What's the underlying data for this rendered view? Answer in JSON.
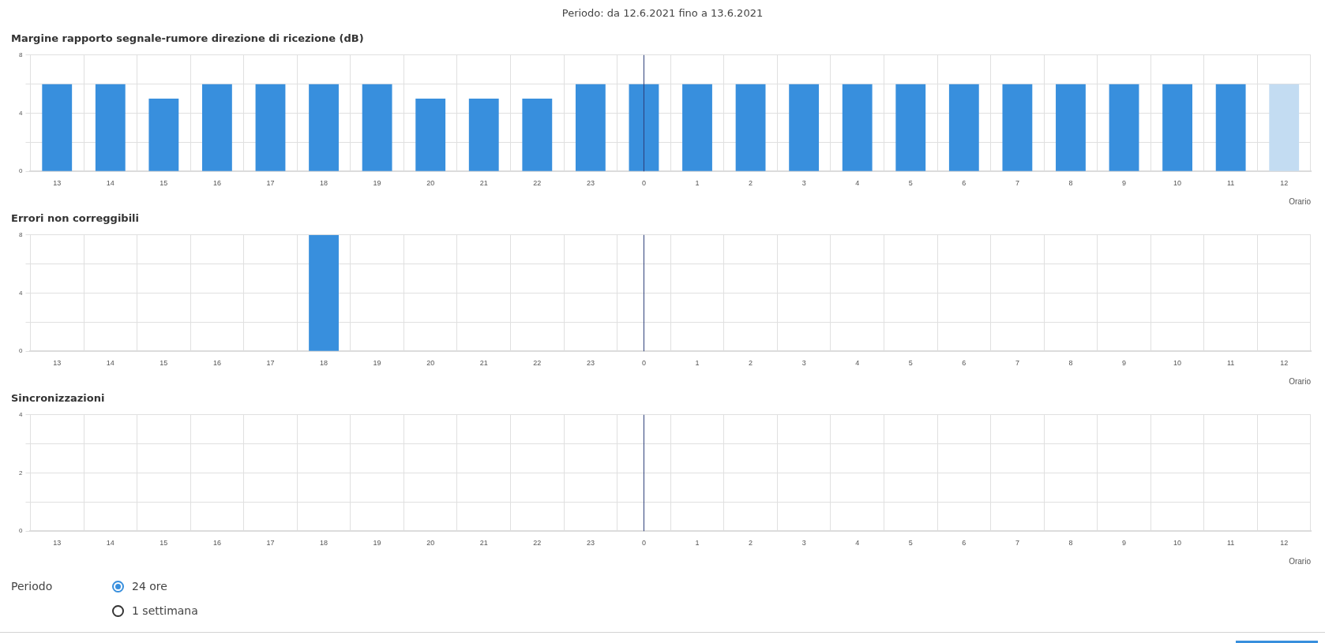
{
  "chart_data": [
    {
      "type": "other",
      "title": "Periodo: da 12.6.2021 fino a 13.6.2021"
    },
    {
      "type": "bar",
      "title": "Margine rapporto segnale-rumore direzione di ricezione (dB)",
      "xlabel": "Orario",
      "categories": [
        "13",
        "14",
        "15",
        "16",
        "17",
        "18",
        "19",
        "20",
        "21",
        "22",
        "23",
        "0",
        "1",
        "2",
        "3",
        "4",
        "5",
        "6",
        "7",
        "8",
        "9",
        "10",
        "11",
        "12"
      ],
      "values": [
        6,
        6,
        5,
        6,
        6,
        6,
        6,
        5,
        5,
        5,
        6,
        6,
        6,
        6,
        6,
        6,
        6,
        6,
        6,
        6,
        6,
        6,
        6,
        6
      ],
      "colors": [
        "#388fdd",
        "#388fdd",
        "#388fdd",
        "#388fdd",
        "#388fdd",
        "#388fdd",
        "#388fdd",
        "#388fdd",
        "#388fdd",
        "#388fdd",
        "#388fdd",
        "#388fdd",
        "#388fdd",
        "#388fdd",
        "#388fdd",
        "#388fdd",
        "#388fdd",
        "#388fdd",
        "#388fdd",
        "#388fdd",
        "#388fdd",
        "#388fdd",
        "#388fdd",
        "#c3dcf2"
      ],
      "ylim": [
        0,
        8
      ],
      "yticks": [
        0,
        {
          "value": 2,
          "label": null
        },
        4,
        {
          "value": 6,
          "label": null
        },
        8
      ],
      "grid": true,
      "ref_lines": [
        {
          "axis": "x",
          "value": "0",
          "color": "#2c3e7a"
        }
      ]
    },
    {
      "type": "bar",
      "title": "Errori non correggibili",
      "xlabel": "Orario",
      "categories": [
        "13",
        "14",
        "15",
        "16",
        "17",
        "18",
        "19",
        "20",
        "21",
        "22",
        "23",
        "0",
        "1",
        "2",
        "3",
        "4",
        "5",
        "6",
        "7",
        "8",
        "9",
        "10",
        "11",
        "12"
      ],
      "values": [
        0,
        0,
        0,
        0,
        0,
        8,
        0,
        0,
        0,
        0,
        0,
        0,
        0,
        0,
        0,
        0,
        0,
        0,
        0,
        0,
        0,
        0,
        0,
        0
      ],
      "color": "#388fdd",
      "ylim": [
        0,
        8
      ],
      "yticks": [
        0,
        {
          "value": 2,
          "label": null
        },
        4,
        {
          "value": 6,
          "label": null
        },
        8
      ],
      "grid": true,
      "ref_lines": [
        {
          "axis": "x",
          "value": "0",
          "color": "#2c3e7a"
        }
      ]
    },
    {
      "type": "bar",
      "title": "Sincronizzazioni",
      "xlabel": "Orario",
      "categories": [
        "13",
        "14",
        "15",
        "16",
        "17",
        "18",
        "19",
        "20",
        "21",
        "22",
        "23",
        "0",
        "1",
        "2",
        "3",
        "4",
        "5",
        "6",
        "7",
        "8",
        "9",
        "10",
        "11",
        "12"
      ],
      "values": [
        0,
        0,
        0,
        0,
        0,
        0,
        0,
        0,
        0,
        0,
        0,
        0,
        0,
        0,
        0,
        0,
        0,
        0,
        0,
        0,
        0,
        0,
        0,
        0
      ],
      "color": "#388fdd",
      "ylim": [
        0,
        4
      ],
      "yticks": [
        0,
        {
          "value": 1,
          "label": null
        },
        2,
        {
          "value": 3,
          "label": null
        },
        4
      ],
      "grid": true,
      "ref_lines": [
        {
          "axis": "x",
          "value": "0",
          "color": "#2c3e7a"
        }
      ]
    },
    {
      "type": "other",
      "title": "Periodo",
      "annotations": [
        "24 ore",
        "1 settimana"
      ]
    }
  ]
}
